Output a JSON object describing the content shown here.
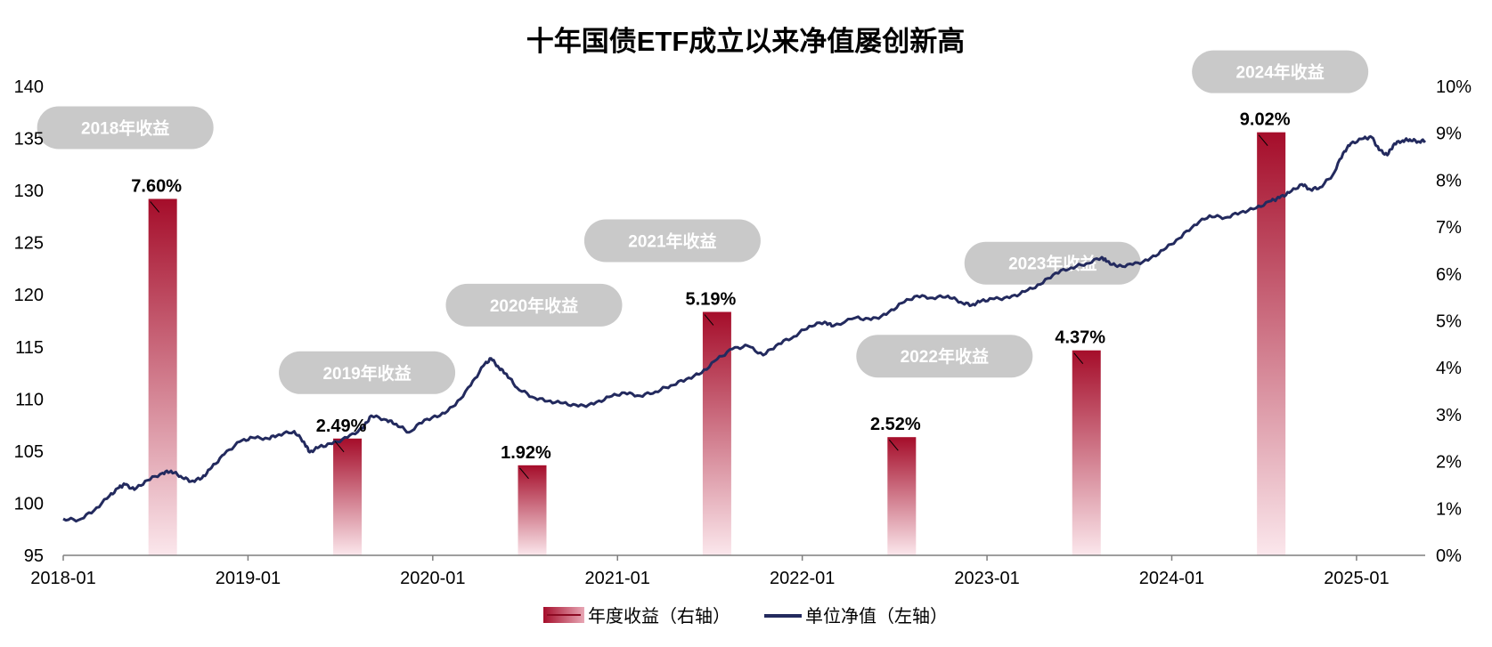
{
  "chart_data": {
    "type": "bar+line",
    "title": "十年国债ETF成立以来净值屡创新高",
    "left_axis": {
      "ticks": [
        "95",
        "100",
        "105",
        "110",
        "115",
        "120",
        "125",
        "130",
        "135",
        "140"
      ],
      "range": [
        95,
        140
      ]
    },
    "right_axis": {
      "ticks": [
        "0%",
        "1%",
        "2%",
        "3%",
        "4%",
        "5%",
        "6%",
        "7%",
        "8%",
        "9%",
        "10%"
      ],
      "range": [
        0,
        10
      ]
    },
    "x_axis": {
      "ticks": [
        "2018-01",
        "2019-01",
        "2020-01",
        "2021-01",
        "2022-01",
        "2023-01",
        "2024-01",
        "2025-01"
      ],
      "range": [
        "2018-01",
        "2025-05"
      ]
    },
    "bars": {
      "name": "年度收益（右轴）",
      "axis": "right",
      "color_top": "#a50d2a",
      "color_bottom": "#fbe7ec",
      "items": [
        {
          "year": "2018",
          "date": "2018-07",
          "value": 7.6,
          "label": "7.60%",
          "tag": "2018年收益"
        },
        {
          "year": "2019",
          "date": "2019-07",
          "value": 2.49,
          "label": "2.49%",
          "tag": "2019年收益"
        },
        {
          "year": "2020",
          "date": "2020-07",
          "value": 1.92,
          "label": "1.92%",
          "tag": "2020年收益"
        },
        {
          "year": "2021",
          "date": "2021-07",
          "value": 5.19,
          "label": "5.19%",
          "tag": "2021年收益"
        },
        {
          "year": "2022",
          "date": "2022-07",
          "value": 2.52,
          "label": "2.52%",
          "tag": "2022年收益"
        },
        {
          "year": "2023",
          "date": "2023-07",
          "value": 4.37,
          "label": "4.37%",
          "tag": "2023年收益"
        },
        {
          "year": "2024",
          "date": "2024-07",
          "value": 9.02,
          "label": "9.02%",
          "tag": "2024年收益"
        }
      ]
    },
    "line": {
      "name": "单位净值（左轴）",
      "axis": "left",
      "color": "#232a5e",
      "points": [
        [
          "2018-01-01",
          98.5
        ],
        [
          "2018-02-01",
          98.4
        ],
        [
          "2018-03-01",
          99.3
        ],
        [
          "2018-04-01",
          100.7
        ],
        [
          "2018-04-20",
          101.5
        ],
        [
          "2018-05-01",
          101.8
        ],
        [
          "2018-05-20",
          101.3
        ],
        [
          "2018-06-15",
          102.2
        ],
        [
          "2018-07-15",
          102.9
        ],
        [
          "2018-08-01",
          103.1
        ],
        [
          "2018-08-20",
          102.6
        ],
        [
          "2018-09-10",
          102.1
        ],
        [
          "2018-10-01",
          102.4
        ],
        [
          "2018-10-20",
          103.4
        ],
        [
          "2018-11-15",
          104.7
        ],
        [
          "2018-12-15",
          105.9
        ],
        [
          "2019-01-10",
          106.3
        ],
        [
          "2019-02-10",
          106.2
        ],
        [
          "2019-03-01",
          106.6
        ],
        [
          "2019-04-01",
          106.9
        ],
        [
          "2019-04-20",
          105.9
        ],
        [
          "2019-05-01",
          104.9
        ],
        [
          "2019-05-20",
          105.4
        ],
        [
          "2019-06-15",
          105.7
        ],
        [
          "2019-07-15",
          106.3
        ],
        [
          "2019-08-15",
          107.2
        ],
        [
          "2019-09-01",
          108.4
        ],
        [
          "2019-10-01",
          108.0
        ],
        [
          "2019-10-20",
          107.6
        ],
        [
          "2019-11-15",
          106.8
        ],
        [
          "2019-12-15",
          108.0
        ],
        [
          "2020-01-15",
          108.4
        ],
        [
          "2020-02-15",
          109.4
        ],
        [
          "2020-03-15",
          111.3
        ],
        [
          "2020-04-10",
          113.2
        ],
        [
          "2020-04-25",
          113.9
        ],
        [
          "2020-05-10",
          113.0
        ],
        [
          "2020-05-25",
          112.4
        ],
        [
          "2020-06-15",
          111.1
        ],
        [
          "2020-07-15",
          110.2
        ],
        [
          "2020-08-15",
          109.8
        ],
        [
          "2020-09-15",
          109.6
        ],
        [
          "2020-10-15",
          109.3
        ],
        [
          "2020-11-15",
          109.5
        ],
        [
          "2020-12-15",
          110.2
        ],
        [
          "2021-01-15",
          110.6
        ],
        [
          "2021-02-15",
          110.3
        ],
        [
          "2021-03-15",
          110.7
        ],
        [
          "2021-04-15",
          111.3
        ],
        [
          "2021-05-15",
          111.9
        ],
        [
          "2021-06-15",
          112.5
        ],
        [
          "2021-07-15",
          113.8
        ],
        [
          "2021-08-15",
          114.8
        ],
        [
          "2021-09-15",
          115.1
        ],
        [
          "2021-10-15",
          114.2
        ],
        [
          "2021-11-15",
          115.3
        ],
        [
          "2021-12-15",
          116.0
        ],
        [
          "2022-01-15",
          117.0
        ],
        [
          "2022-02-15",
          117.4
        ],
        [
          "2022-03-01",
          117.0
        ],
        [
          "2022-04-15",
          117.8
        ],
        [
          "2022-05-15",
          117.6
        ],
        [
          "2022-06-15",
          118.1
        ],
        [
          "2022-07-15",
          119.2
        ],
        [
          "2022-08-15",
          119.9
        ],
        [
          "2022-09-15",
          119.7
        ],
        [
          "2022-10-15",
          119.9
        ],
        [
          "2022-11-10",
          119.3
        ],
        [
          "2022-12-01",
          119.0
        ],
        [
          "2022-12-20",
          119.4
        ],
        [
          "2023-01-15",
          119.6
        ],
        [
          "2023-02-15",
          119.7
        ],
        [
          "2023-03-15",
          120.3
        ],
        [
          "2023-04-15",
          121.0
        ],
        [
          "2023-05-15",
          122.1
        ],
        [
          "2023-06-15",
          122.6
        ],
        [
          "2023-07-15",
          123.0
        ],
        [
          "2023-08-15",
          123.6
        ],
        [
          "2023-08-25",
          123.2
        ],
        [
          "2023-09-15",
          122.7
        ],
        [
          "2023-10-15",
          122.9
        ],
        [
          "2023-11-15",
          123.3
        ],
        [
          "2023-12-15",
          124.3
        ],
        [
          "2024-01-15",
          125.4
        ],
        [
          "2024-02-15",
          126.7
        ],
        [
          "2024-03-15",
          127.6
        ],
        [
          "2024-04-15",
          127.4
        ],
        [
          "2024-05-15",
          127.9
        ],
        [
          "2024-06-15",
          128.3
        ],
        [
          "2024-07-15",
          129.0
        ],
        [
          "2024-08-01",
          129.3
        ],
        [
          "2024-08-20",
          129.8
        ],
        [
          "2024-09-15",
          130.6
        ],
        [
          "2024-10-01",
          130.1
        ],
        [
          "2024-10-20",
          130.3
        ],
        [
          "2024-11-15",
          131.5
        ],
        [
          "2024-12-05",
          133.6
        ],
        [
          "2024-12-20",
          134.5
        ],
        [
          "2025-01-15",
          135.0
        ],
        [
          "2025-02-01",
          135.1
        ],
        [
          "2025-02-15",
          133.9
        ],
        [
          "2025-03-01",
          133.4
        ],
        [
          "2025-03-15",
          134.5
        ],
        [
          "2025-04-01",
          134.8
        ],
        [
          "2025-04-15",
          134.9
        ],
        [
          "2025-05-01",
          134.7
        ],
        [
          "2025-05-15",
          134.8
        ]
      ]
    },
    "legend": {
      "position": "bottom",
      "items": [
        "年度收益（右轴）",
        "单位净值（左轴）"
      ]
    },
    "grid": false
  }
}
